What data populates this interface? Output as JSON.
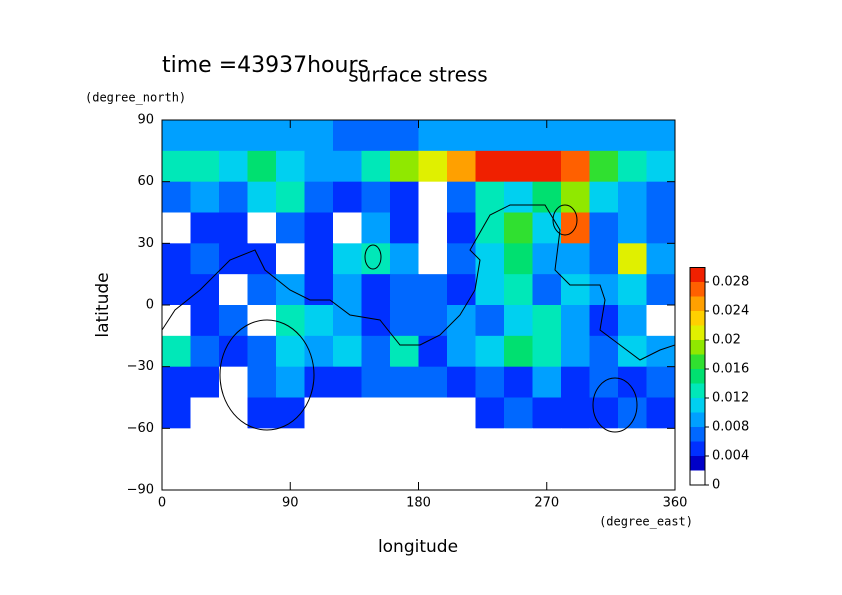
{
  "chart_data": {
    "type": "contour",
    "annotation": "time =43937hours",
    "title": "surface stress",
    "xlabel": "longitude",
    "ylabel": "latitude",
    "xunit": "(degree_east)",
    "yunit": "(degree_north)",
    "xlim": [
      0,
      360
    ],
    "ylim": [
      -90,
      90
    ],
    "xticks": [
      0,
      90,
      180,
      270,
      360
    ],
    "yticks": [
      {
        "value": -90,
        "label": "−90"
      },
      {
        "value": -60,
        "label": "−60"
      },
      {
        "value": -30,
        "label": "−30"
      },
      0,
      30,
      60,
      90
    ],
    "x": [
      10,
      30,
      50,
      70,
      90,
      110,
      130,
      150,
      170,
      190,
      210,
      230,
      250,
      270,
      290,
      310,
      330,
      350
    ],
    "y": [
      82.5,
      67.5,
      52.5,
      37.5,
      22.5,
      7.5,
      -7.5,
      -22.5,
      -37.5,
      -52.5,
      -67.5,
      -82.5
    ],
    "z": [
      [
        0.008,
        0.008,
        0.008,
        0.008,
        0.008,
        0.008,
        0.006,
        0.006,
        0.006,
        0.008,
        0.008,
        0.008,
        0.008,
        0.008,
        0.008,
        0.008,
        0.008,
        0.008
      ],
      [
        0.012,
        0.012,
        0.01,
        0.014,
        0.01,
        0.008,
        0.008,
        0.012,
        0.018,
        0.02,
        0.024,
        0.028,
        0.028,
        0.03,
        0.026,
        0.016,
        0.012,
        0.01
      ],
      [
        0.006,
        0.008,
        0.006,
        0.01,
        0.012,
        0.006,
        0.004,
        0.006,
        0.004,
        0,
        0.006,
        0.012,
        0.01,
        0.014,
        0.018,
        0.01,
        0.008,
        0.006
      ],
      [
        0,
        0.004,
        0.004,
        0,
        0.006,
        0.004,
        0,
        0.008,
        0.004,
        0,
        0.004,
        0.012,
        0.016,
        0.01,
        0.026,
        0.006,
        0.008,
        0.006
      ],
      [
        0.004,
        0.006,
        0.004,
        0.004,
        0,
        0.004,
        0.01,
        0.012,
        0.008,
        0,
        0.006,
        0.01,
        0.014,
        0.008,
        0.008,
        0.006,
        0.02,
        0.008
      ],
      [
        0.004,
        0.004,
        0,
        0.006,
        0.008,
        0.004,
        0.008,
        0.004,
        0.006,
        0.006,
        0.004,
        0.01,
        0.012,
        0.006,
        0.01,
        0.008,
        0.01,
        0.006
      ],
      [
        0,
        0.004,
        0.006,
        0,
        0.012,
        0.01,
        0.008,
        0.004,
        0.006,
        0.006,
        0.008,
        0.006,
        0.01,
        0.012,
        0.008,
        0.004,
        0.008,
        0
      ],
      [
        0.012,
        0.006,
        0.004,
        0.006,
        0.01,
        0.008,
        0.01,
        0.006,
        0.012,
        0.004,
        0.008,
        0.01,
        0.014,
        0.012,
        0.008,
        0.006,
        0.01,
        0.008
      ],
      [
        0.004,
        0.004,
        0,
        0.006,
        0.008,
        0.004,
        0.004,
        0.006,
        0.006,
        0.006,
        0.004,
        0.006,
        0.004,
        0.008,
        0.004,
        0.006,
        0.004,
        0.006
      ],
      [
        0.004,
        0,
        0,
        0.004,
        0.004,
        0,
        0,
        0,
        0,
        0,
        0,
        0.004,
        0.006,
        0.004,
        0.004,
        0.004,
        0.006,
        0.004
      ],
      [
        0,
        0,
        0,
        0,
        0,
        0,
        0,
        0,
        0,
        0,
        0,
        0,
        0,
        0,
        0,
        0,
        0,
        0
      ],
      [
        0,
        0,
        0,
        0,
        0,
        0,
        0,
        0,
        0,
        0,
        0,
        0,
        0,
        0,
        0,
        0,
        0,
        0
      ]
    ],
    "levels": [
      0,
      0.002,
      0.004,
      0.006,
      0.008,
      0.01,
      0.012,
      0.014,
      0.016,
      0.018,
      0.02,
      0.022,
      0.024,
      0.026,
      0.028,
      0.03
    ],
    "colors": [
      "#ffffff",
      "#0000c8",
      "#0030ff",
      "#0068ff",
      "#00a0ff",
      "#00d0f0",
      "#00e8b8",
      "#00e070",
      "#30e030",
      "#90e800",
      "#e0f000",
      "#ffd000",
      "#ffa000",
      "#ff6000",
      "#f02000"
    ],
    "cticks": [
      0,
      0.004,
      0.008,
      0.012,
      0.016,
      0.02,
      0.024,
      0.028
    ]
  }
}
